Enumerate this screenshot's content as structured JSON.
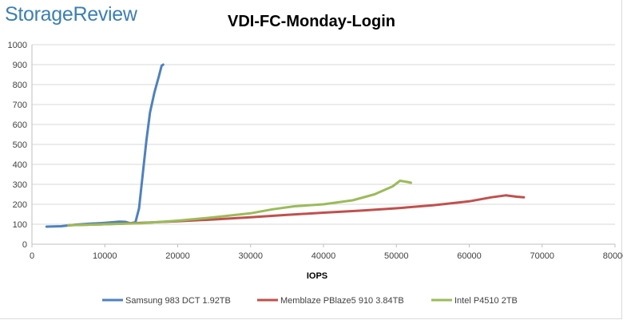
{
  "brand": {
    "logo_text": "StorageReview"
  },
  "chart_data": {
    "type": "line",
    "title": "VDI-FC-Monday-Login",
    "xlabel": "IOPS",
    "ylabel": "",
    "xlim": [
      0,
      80000
    ],
    "ylim": [
      0,
      1000
    ],
    "xticks": [
      0,
      10000,
      20000,
      30000,
      40000,
      50000,
      60000,
      70000,
      80000
    ],
    "yticks": [
      0,
      100,
      200,
      300,
      400,
      500,
      600,
      700,
      800,
      900,
      1000
    ],
    "grid": "horizontal",
    "legend": "bottom",
    "series": [
      {
        "name": "Samsung 983 DCT 1.92TB",
        "color": "#4f81bd",
        "points": [
          [
            2000,
            88
          ],
          [
            4000,
            90
          ],
          [
            6000,
            98
          ],
          [
            8000,
            103
          ],
          [
            10000,
            107
          ],
          [
            12000,
            113
          ],
          [
            12800,
            112
          ],
          [
            13500,
            105
          ],
          [
            14200,
            110
          ],
          [
            14700,
            180
          ],
          [
            15200,
            350
          ],
          [
            15700,
            520
          ],
          [
            16200,
            660
          ],
          [
            16800,
            760
          ],
          [
            17400,
            840
          ],
          [
            17800,
            895
          ],
          [
            18000,
            900
          ]
        ]
      },
      {
        "name": "Memblaze PBlaze5 910 3.84TB",
        "color": "#c0504d",
        "points": [
          [
            5000,
            95
          ],
          [
            10000,
            100
          ],
          [
            15000,
            107
          ],
          [
            20000,
            115
          ],
          [
            25000,
            124
          ],
          [
            30000,
            135
          ],
          [
            35000,
            147
          ],
          [
            40000,
            158
          ],
          [
            45000,
            168
          ],
          [
            50000,
            180
          ],
          [
            55000,
            195
          ],
          [
            60000,
            215
          ],
          [
            63000,
            235
          ],
          [
            65000,
            245
          ],
          [
            66500,
            238
          ],
          [
            67500,
            235
          ]
        ]
      },
      {
        "name": "Intel P4510 2TB",
        "color": "#9bbb59",
        "points": [
          [
            5000,
            95
          ],
          [
            10000,
            100
          ],
          [
            15000,
            105
          ],
          [
            20000,
            118
          ],
          [
            25000,
            135
          ],
          [
            30000,
            155
          ],
          [
            33000,
            175
          ],
          [
            36000,
            190
          ],
          [
            40000,
            200
          ],
          [
            44000,
            220
          ],
          [
            47000,
            250
          ],
          [
            49500,
            290
          ],
          [
            50500,
            318
          ],
          [
            51500,
            312
          ],
          [
            52000,
            308
          ]
        ]
      }
    ]
  }
}
